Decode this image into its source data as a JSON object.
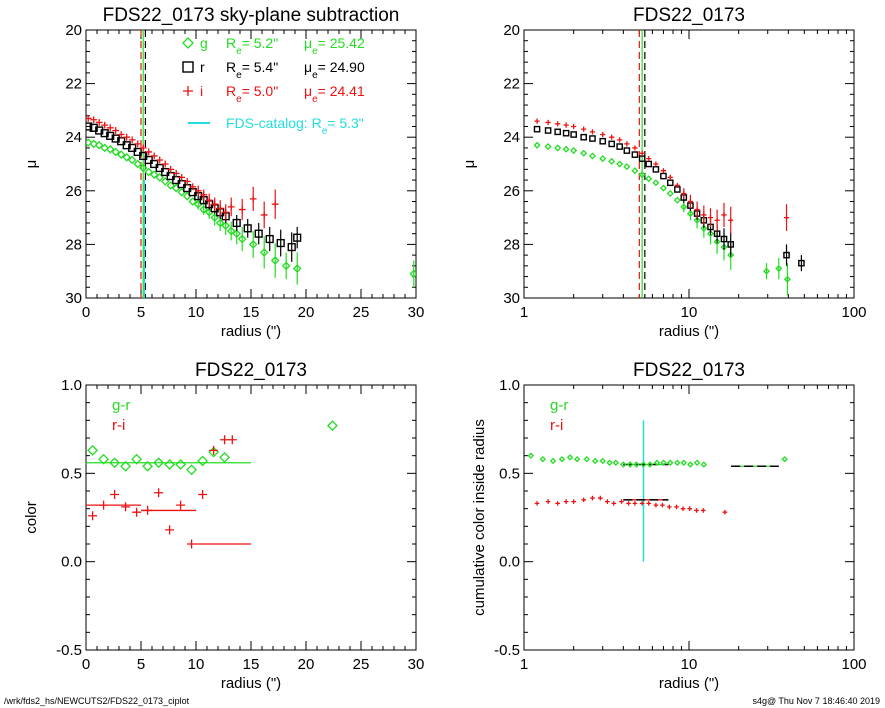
{
  "footer": {
    "path": "/wrk/fds2_hs/NEWCUTS2/FDS22_0173_ciplot",
    "stamp": "s4g@  Thu Nov  7 18:46:40 2019"
  },
  "colors": {
    "g": "#22dd22",
    "r": "#000000",
    "i": "#ee1111",
    "catalog": "#22dddd",
    "axis": "#000000"
  },
  "chart_data": [
    {
      "type": "scatter",
      "title": "FDS22_0173 sky-plane subtraction",
      "xlabel": "radius (\")",
      "ylabel": "μ",
      "xlim": [
        0,
        30
      ],
      "ylim": [
        30,
        20
      ],
      "xticks": [
        0,
        5,
        10,
        15,
        20,
        25,
        30
      ],
      "yticks": [
        20,
        22,
        24,
        26,
        28,
        30
      ],
      "legend": {
        "position": "top-right",
        "entries": [
          {
            "symbol": "◇",
            "band": "g",
            "re_label": "R",
            "re_sub": "e",
            "re_value": "5.2\"",
            "mu_label": "μ",
            "mu_sub": "e",
            "mu_value": "25.42"
          },
          {
            "symbol": "□",
            "band": "r",
            "re_label": "R",
            "re_sub": "e",
            "re_value": "5.4\"",
            "mu_label": "μ",
            "mu_sub": "e",
            "mu_value": "24.90"
          },
          {
            "symbol": "+",
            "band": "i",
            "re_label": "R",
            "re_sub": "e",
            "re_value": "5.0\"",
            "mu_label": "μ",
            "mu_sub": "e",
            "mu_value": "24.41"
          }
        ],
        "catalog": {
          "text": "FDS-catalog: R",
          "sub": "e",
          "value": "5.3\""
        }
      },
      "vlines": [
        {
          "x": 5.0,
          "color": "i",
          "dash": true
        },
        {
          "x": 5.2,
          "color": "g",
          "dash": false
        },
        {
          "x": 5.4,
          "color": "r",
          "dash": true
        },
        {
          "x": 5.3,
          "color": "catalog",
          "dash": false,
          "y_from": 25.6
        }
      ],
      "series": [
        {
          "name": "g",
          "marker": "diamond",
          "x": [
            0.2,
            0.7,
            1.2,
            1.7,
            2.2,
            2.7,
            3.2,
            3.7,
            4.2,
            4.7,
            5.2,
            5.7,
            6.2,
            6.7,
            7.2,
            7.7,
            8.2,
            8.7,
            9.2,
            9.7,
            10.2,
            10.7,
            11.2,
            11.7,
            12.2,
            12.7,
            13.2,
            13.7,
            14.2,
            15.2,
            16.2,
            17.2,
            18.2,
            19.2,
            29.8
          ],
          "y": [
            24.2,
            24.25,
            24.3,
            24.4,
            24.45,
            24.55,
            24.65,
            24.75,
            24.85,
            25.0,
            25.15,
            25.3,
            25.4,
            25.5,
            25.65,
            25.8,
            25.9,
            26.05,
            26.2,
            26.4,
            26.5,
            26.7,
            26.8,
            27.0,
            27.2,
            27.3,
            27.5,
            27.6,
            27.8,
            28.0,
            28.3,
            28.6,
            28.8,
            28.9,
            29.1
          ],
          "err": [
            0,
            0,
            0,
            0,
            0,
            0,
            0,
            0,
            0,
            0,
            0,
            0,
            0,
            0,
            0,
            0,
            0,
            0,
            0,
            0,
            0.2,
            0.2,
            0.25,
            0.3,
            0.3,
            0.35,
            0.35,
            0.4,
            0.45,
            0.5,
            0.6,
            0.65,
            0.5,
            0.6,
            0.5
          ]
        },
        {
          "name": "r",
          "marker": "square",
          "x": [
            0.2,
            0.7,
            1.2,
            1.7,
            2.2,
            2.7,
            3.2,
            3.7,
            4.2,
            4.7,
            5.2,
            5.7,
            6.2,
            6.7,
            7.2,
            7.7,
            8.2,
            8.7,
            9.2,
            9.7,
            10.2,
            10.7,
            11.2,
            11.7,
            12.2,
            12.7,
            13.7,
            14.7,
            15.7,
            16.7,
            17.7,
            18.7,
            19.2
          ],
          "y": [
            23.6,
            23.65,
            23.75,
            23.85,
            23.95,
            24.05,
            24.15,
            24.3,
            24.4,
            24.55,
            24.7,
            24.85,
            25.0,
            25.15,
            25.3,
            25.45,
            25.6,
            25.75,
            25.9,
            26.05,
            26.2,
            26.35,
            26.5,
            26.65,
            26.8,
            26.95,
            27.2,
            27.4,
            27.6,
            27.8,
            27.95,
            28.1,
            27.75
          ],
          "err": [
            0,
            0,
            0,
            0,
            0,
            0,
            0,
            0,
            0,
            0,
            0,
            0,
            0,
            0,
            0,
            0,
            0,
            0,
            0,
            0,
            0.15,
            0.15,
            0.2,
            0.2,
            0.25,
            0.25,
            0.3,
            0.35,
            0.4,
            0.45,
            0.5,
            0.55,
            0.4
          ]
        },
        {
          "name": "i",
          "marker": "plus",
          "x": [
            0.2,
            0.7,
            1.2,
            1.7,
            2.2,
            2.7,
            3.2,
            3.7,
            4.2,
            4.7,
            5.2,
            5.7,
            6.2,
            6.7,
            7.2,
            7.7,
            8.2,
            8.7,
            9.2,
            9.7,
            10.2,
            10.7,
            11.2,
            11.7,
            12.2,
            12.7,
            13.2,
            14.2,
            15.2,
            16.2,
            17.2
          ],
          "y": [
            23.3,
            23.35,
            23.45,
            23.55,
            23.65,
            23.75,
            23.9,
            24.0,
            24.1,
            24.25,
            24.4,
            24.55,
            24.7,
            24.85,
            25.0,
            25.2,
            25.35,
            25.5,
            25.65,
            25.85,
            26.0,
            26.15,
            26.35,
            26.5,
            26.65,
            26.8,
            26.6,
            26.7,
            26.3,
            26.9,
            26.5
          ],
          "err": [
            0,
            0,
            0,
            0,
            0,
            0,
            0,
            0,
            0,
            0,
            0,
            0,
            0,
            0,
            0,
            0,
            0,
            0,
            0,
            0,
            0.2,
            0.2,
            0.25,
            0.25,
            0.3,
            0.3,
            0.35,
            0.4,
            0.45,
            0.5,
            0.55
          ]
        }
      ]
    },
    {
      "type": "scatter",
      "title": "FDS22_0173",
      "xlabel": "radius (\")",
      "ylabel": "μ",
      "xscale": "log",
      "xlim": [
        1,
        100
      ],
      "ylim": [
        30,
        20
      ],
      "xticks": [
        1,
        10,
        100
      ],
      "yticks": [
        20,
        22,
        24,
        26,
        28,
        30
      ],
      "vlines": [
        {
          "x": 5.0,
          "color": "i",
          "dash": true
        },
        {
          "x": 5.2,
          "color": "g",
          "dash": false
        },
        {
          "x": 5.4,
          "color": "r",
          "dash": true
        }
      ],
      "series": [
        {
          "name": "g",
          "marker": "diamond",
          "x": [
            1.2,
            1.4,
            1.6,
            1.8,
            2.0,
            2.3,
            2.6,
            3.0,
            3.4,
            3.8,
            4.2,
            4.7,
            5.2,
            5.7,
            6.3,
            7.0,
            7.7,
            8.5,
            9.3,
            10.2,
            11.2,
            12.3,
            13.5,
            14.8,
            16.3,
            17.9,
            29.5,
            35.0,
            39.5
          ],
          "y": [
            24.3,
            24.35,
            24.4,
            24.45,
            24.5,
            24.6,
            24.7,
            24.8,
            24.9,
            25.0,
            25.1,
            25.25,
            25.4,
            25.55,
            25.7,
            25.9,
            26.1,
            26.35,
            26.6,
            26.85,
            27.1,
            27.4,
            27.6,
            27.9,
            28.1,
            28.4,
            29.0,
            28.9,
            29.3
          ],
          "err": [
            0,
            0,
            0,
            0,
            0,
            0,
            0,
            0,
            0,
            0,
            0,
            0,
            0,
            0,
            0,
            0,
            0,
            0,
            0.2,
            0.25,
            0.3,
            0.35,
            0.4,
            0.45,
            0.5,
            0.55,
            0.3,
            0.4,
            0.6
          ]
        },
        {
          "name": "r",
          "marker": "square",
          "x": [
            1.2,
            1.4,
            1.6,
            1.8,
            2.0,
            2.3,
            2.6,
            3.0,
            3.4,
            3.8,
            4.2,
            4.7,
            5.2,
            5.7,
            6.3,
            7.0,
            7.7,
            8.5,
            9.3,
            10.2,
            11.2,
            12.3,
            13.5,
            14.8,
            16.3,
            17.9,
            39.0,
            48.0
          ],
          "y": [
            23.7,
            23.75,
            23.8,
            23.85,
            23.9,
            24.0,
            24.05,
            24.15,
            24.25,
            24.35,
            24.5,
            24.65,
            24.8,
            25.0,
            25.2,
            25.45,
            25.7,
            25.95,
            26.25,
            26.55,
            26.85,
            27.1,
            27.35,
            27.6,
            27.8,
            28.0,
            28.4,
            28.7
          ],
          "err": [
            0,
            0,
            0,
            0,
            0,
            0,
            0,
            0,
            0,
            0,
            0,
            0,
            0,
            0,
            0,
            0,
            0,
            0,
            0.2,
            0.2,
            0.25,
            0.3,
            0.3,
            0.35,
            0.4,
            0.45,
            0.4,
            0.3
          ]
        },
        {
          "name": "i",
          "marker": "plus",
          "x": [
            1.2,
            1.4,
            1.6,
            1.8,
            2.0,
            2.3,
            2.6,
            3.0,
            3.4,
            3.8,
            4.2,
            4.7,
            5.2,
            5.7,
            6.3,
            7.0,
            7.7,
            8.5,
            9.3,
            10.2,
            11.2,
            12.3,
            13.5,
            14.8,
            16.3,
            17.9,
            39.0
          ],
          "y": [
            23.4,
            23.45,
            23.5,
            23.55,
            23.6,
            23.7,
            23.8,
            23.9,
            24.0,
            24.1,
            24.25,
            24.4,
            24.6,
            24.8,
            25.0,
            25.25,
            25.5,
            25.8,
            26.1,
            26.4,
            26.7,
            26.9,
            27.0,
            27.1,
            26.9,
            27.1,
            27.0
          ],
          "err": [
            0,
            0,
            0,
            0,
            0,
            0,
            0,
            0,
            0,
            0,
            0,
            0,
            0,
            0,
            0,
            0,
            0,
            0,
            0.2,
            0.25,
            0.3,
            0.35,
            0.35,
            0.4,
            0.45,
            0.5,
            0.5
          ]
        }
      ]
    },
    {
      "type": "scatter",
      "title": "FDS22_0173",
      "xlabel": "radius (\")",
      "ylabel": "color",
      "xlim": [
        0,
        30
      ],
      "ylim": [
        -0.5,
        1.0
      ],
      "xticks": [
        0,
        5,
        10,
        15,
        20,
        25,
        30
      ],
      "yticks": [
        -0.5,
        0.0,
        0.5,
        1.0
      ],
      "ytick_labels": [
        "-0.5",
        "0.0",
        "0.5",
        "1.0"
      ],
      "legend": {
        "position": "top-left",
        "entries": [
          {
            "text": "g-r",
            "color": "g"
          },
          {
            "text": "r-i",
            "color": "i"
          }
        ]
      },
      "series": [
        {
          "name": "g-r",
          "marker": "diamond",
          "x": [
            0.6,
            1.6,
            2.6,
            3.6,
            4.6,
            5.6,
            6.6,
            7.6,
            8.6,
            9.6,
            10.6,
            11.6,
            12.6,
            22.4
          ],
          "y": [
            0.63,
            0.58,
            0.56,
            0.54,
            0.58,
            0.54,
            0.56,
            0.55,
            0.55,
            0.52,
            0.57,
            0.62,
            0.59,
            0.77
          ]
        },
        {
          "name": "r-i",
          "marker": "plus",
          "x": [
            0.6,
            1.6,
            2.6,
            3.6,
            4.6,
            5.6,
            6.6,
            7.6,
            8.6,
            9.6,
            10.6,
            11.6,
            12.6,
            13.3
          ],
          "y": [
            0.26,
            0.32,
            0.38,
            0.31,
            0.28,
            0.29,
            0.39,
            0.18,
            0.32,
            0.1,
            0.38,
            0.63,
            0.69,
            0.69
          ]
        }
      ],
      "hlines": [
        {
          "series": "g-r",
          "y": 0.56,
          "x": [
            0,
            15
          ]
        },
        {
          "series": "r-i",
          "y": 0.32,
          "x": [
            0,
            5
          ]
        },
        {
          "series": "r-i",
          "y": 0.29,
          "x": [
            5,
            10
          ]
        },
        {
          "series": "r-i",
          "y": 0.1,
          "x": [
            10,
            15
          ]
        }
      ]
    },
    {
      "type": "scatter",
      "title": "FDS22_0173",
      "xlabel": "radius (\")",
      "ylabel": "cumulative color inside radius",
      "xscale": "log",
      "xlim": [
        1,
        100
      ],
      "ylim": [
        -0.5,
        1.0
      ],
      "xticks": [
        1,
        10,
        100
      ],
      "yticks": [
        -0.5,
        0.0,
        0.5,
        1.0
      ],
      "ytick_labels": [
        "-0.5",
        "0.0",
        "0.5",
        "1.0"
      ],
      "legend": {
        "position": "top-left",
        "entries": [
          {
            "text": "g-r",
            "color": "g"
          },
          {
            "text": "r-i",
            "color": "i"
          }
        ]
      },
      "vlines": [
        {
          "x": 5.3,
          "color": "catalog",
          "dash": false,
          "y_range": [
            0.0,
            0.8
          ]
        }
      ],
      "series": [
        {
          "name": "g-r",
          "marker": "diamond",
          "x": [
            1.1,
            1.3,
            1.5,
            1.7,
            1.9,
            2.1,
            2.4,
            2.7,
            3.0,
            3.3,
            3.6,
            4.0,
            4.4,
            4.8,
            5.3,
            5.8,
            6.4,
            7.0,
            7.7,
            8.5,
            9.3,
            10.2,
            11.2,
            12.3,
            38.0
          ],
          "y": [
            0.6,
            0.58,
            0.57,
            0.58,
            0.59,
            0.58,
            0.58,
            0.57,
            0.57,
            0.56,
            0.56,
            0.55,
            0.55,
            0.55,
            0.55,
            0.55,
            0.56,
            0.56,
            0.56,
            0.56,
            0.56,
            0.55,
            0.56,
            0.55,
            0.58
          ]
        },
        {
          "name": "r-i",
          "marker": "plus",
          "x": [
            1.2,
            1.4,
            1.6,
            1.8,
            2.0,
            2.3,
            2.6,
            2.9,
            3.2,
            3.5,
            3.9,
            4.3,
            4.7,
            5.2,
            5.7,
            6.3,
            6.9,
            7.6,
            8.4,
            9.2,
            10.1,
            11.1,
            12.2,
            16.5
          ],
          "y": [
            0.33,
            0.34,
            0.33,
            0.34,
            0.34,
            0.35,
            0.36,
            0.36,
            0.34,
            0.33,
            0.34,
            0.33,
            0.33,
            0.33,
            0.33,
            0.32,
            0.32,
            0.31,
            0.31,
            0.3,
            0.3,
            0.29,
            0.29,
            0.28
          ]
        }
      ],
      "hlines": [
        {
          "series": "g-r",
          "y": 0.55,
          "x": [
            4.0,
            7.5
          ],
          "color": "r"
        },
        {
          "series": "g-r",
          "y": 0.54,
          "x": [
            18,
            35
          ],
          "color": "r"
        },
        {
          "series": "r-i",
          "y": 0.35,
          "x": [
            4.0,
            7.5
          ],
          "color": "r"
        }
      ]
    }
  ]
}
